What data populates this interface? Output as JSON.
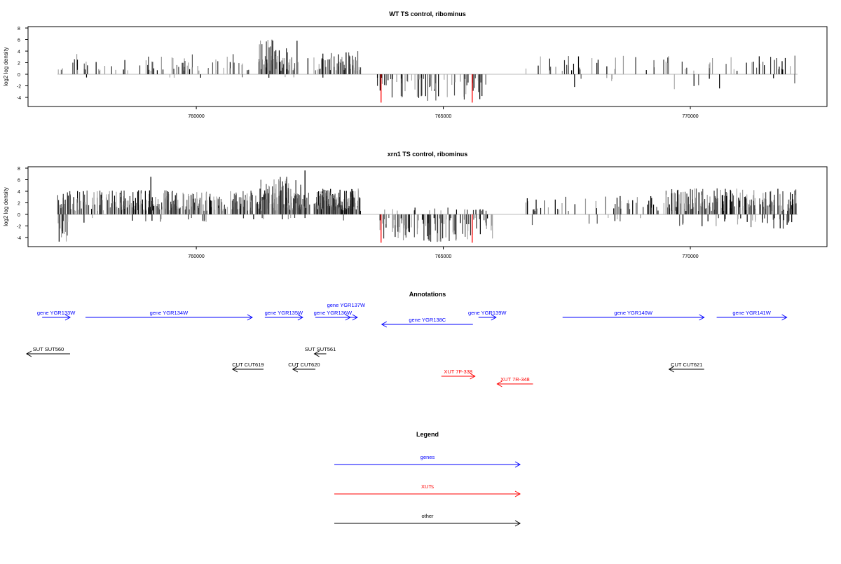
{
  "chart_data": [
    {
      "type": "bar",
      "title": "WT TS control, ribominus",
      "ylabel": "log2 log density",
      "xlabel": "",
      "xlim": [
        757190,
        772170
      ],
      "ylim": [
        -5.6,
        8.2
      ],
      "xticks": [
        760000,
        765000,
        770000
      ],
      "xtick_labels": [
        "760000",
        "765000",
        "770000"
      ],
      "yticks": [
        8,
        6,
        4,
        2,
        0,
        -2,
        -4
      ],
      "ytick_labels": [
        "8",
        "6",
        "4",
        "2",
        "0",
        "-2",
        "-4"
      ],
      "regions": [
        {
          "start": 757190,
          "end": 763330,
          "density": 18,
          "pos_max": 3.5,
          "neg_max": 0.3,
          "neg_prob": 0.03
        },
        {
          "start": 761270,
          "end": 762125,
          "density": 60,
          "pos_max": 6.2,
          "neg_max": 0.5,
          "neg_prob": 0.02
        },
        {
          "start": 762410,
          "end": 763330,
          "density": 45,
          "pos_max": 4.0,
          "neg_max": 0.5,
          "neg_prob": 0.02
        },
        {
          "start": 763620,
          "end": 765900,
          "density": 30,
          "pos_max": 0,
          "neg_max": 4.6,
          "neg_prob": 1
        },
        {
          "start": 766660,
          "end": 772170,
          "density": 14,
          "pos_max": 3.3,
          "neg_max": 2.6,
          "neg_prob": 0.12
        }
      ],
      "highlight_bars": [
        {
          "x": 763740,
          "y": -4.9,
          "color": "#ff0000"
        },
        {
          "x": 765585,
          "y": -4.9,
          "color": "#ff0000"
        }
      ],
      "seed": 11
    },
    {
      "type": "bar",
      "title": "xrn1 TS control, ribominus",
      "ylabel": "log2 log density",
      "xlabel": "",
      "xlim": [
        757190,
        772170
      ],
      "ylim": [
        -5.6,
        8.2
      ],
      "xticks": [
        760000,
        765000,
        770000
      ],
      "xtick_labels": [
        "760000",
        "765000",
        "770000"
      ],
      "yticks": [
        8,
        6,
        4,
        2,
        0,
        -2,
        -4
      ],
      "ytick_labels": [
        "8",
        "6",
        "4",
        "2",
        "0",
        "-2",
        "-4"
      ],
      "regions": [
        {
          "start": 757190,
          "end": 763330,
          "density": 80,
          "pos_max": 4.2,
          "neg_max": 1.5,
          "neg_prob": 0.05
        },
        {
          "start": 757190,
          "end": 757400,
          "density": 80,
          "pos_max": 4.4,
          "neg_max": 4.9,
          "neg_prob": 0.5
        },
        {
          "start": 761270,
          "end": 762125,
          "density": 120,
          "pos_max": 6.5,
          "neg_max": 1,
          "neg_prob": 0.03
        },
        {
          "start": 762410,
          "end": 763330,
          "density": 110,
          "pos_max": 4.5,
          "neg_max": 1,
          "neg_prob": 0.03
        },
        {
          "start": 763620,
          "end": 766000,
          "density": 55,
          "pos_max": 1.2,
          "neg_max": 4.8,
          "neg_prob": 0.85
        },
        {
          "start": 766660,
          "end": 769500,
          "density": 20,
          "pos_max": 3.3,
          "neg_max": 2,
          "neg_prob": 0.2
        },
        {
          "start": 769500,
          "end": 772170,
          "density": 90,
          "pos_max": 4.5,
          "neg_max": 2.5,
          "neg_prob": 0.15
        }
      ],
      "highlight_bars": [
        {
          "x": 763740,
          "y": -4.9,
          "color": "#ff0000"
        },
        {
          "x": 765585,
          "y": -4.9,
          "color": "#ff0000"
        },
        {
          "x": 762200,
          "y": 7.6,
          "color": "#000000"
        },
        {
          "x": 759080,
          "y": 6.5,
          "color": "#000000"
        }
      ],
      "seed": 29
    }
  ],
  "annotations": {
    "title": "Annotations",
    "features": [
      {
        "label": "gene YGR133W",
        "start": 756880,
        "end": 757445,
        "strand": "+",
        "kind": "gene",
        "track": 0
      },
      {
        "label": "gene YGR134W",
        "start": 757757,
        "end": 761132,
        "strand": "+",
        "kind": "gene",
        "track": 0
      },
      {
        "label": "gene YGR135W",
        "start": 761387,
        "end": 762153,
        "strand": "+",
        "kind": "gene",
        "track": 0
      },
      {
        "label": "gene YGR136W",
        "start": 762408,
        "end": 763117,
        "strand": "+",
        "kind": "gene",
        "track": 0
      },
      {
        "label": "gene YGR137W",
        "start": 762805,
        "end": 763259,
        "strand": "+",
        "kind": "gene",
        "track": 0
      },
      {
        "label": "gene YGR138C",
        "start": 763755,
        "end": 765599,
        "strand": "-",
        "kind": "gene",
        "track": 1
      },
      {
        "label": "gene YGR139W",
        "start": 765712,
        "end": 766067,
        "strand": "+",
        "kind": "gene",
        "track": 0
      },
      {
        "label": "gene YGR140W",
        "start": 767414,
        "end": 770278,
        "strand": "+",
        "kind": "gene",
        "track": 0
      },
      {
        "label": "gene YGR141W",
        "start": 770533,
        "end": 771951,
        "strand": "+",
        "kind": "gene",
        "track": 0
      },
      {
        "label": "SUT SUT560",
        "start": 756566,
        "end": 757445,
        "strand": "-",
        "kind": "other",
        "track": 2
      },
      {
        "label": "SUT SUT561",
        "start": 762390,
        "end": 762630,
        "strand": "-",
        "kind": "other",
        "track": 2
      },
      {
        "label": "CUT CUT619",
        "start": 760735,
        "end": 761360,
        "strand": "-",
        "kind": "other",
        "track": 3
      },
      {
        "label": "CUT CUT620",
        "start": 761955,
        "end": 762410,
        "strand": "-",
        "kind": "other",
        "track": 3
      },
      {
        "label": "CUT CUT621",
        "start": 769570,
        "end": 770280,
        "strand": "-",
        "kind": "other",
        "track": 3
      },
      {
        "label": "XUT 7F-338",
        "start": 764960,
        "end": 765640,
        "strand": "+",
        "kind": "xut",
        "track": 4
      },
      {
        "label": "XUT 7R-348",
        "start": 766090,
        "end": 766815,
        "strand": "-",
        "kind": "xut",
        "track": 5
      }
    ]
  },
  "legend": {
    "title": "Legend",
    "items": [
      {
        "label": "genes",
        "color": "#0000ff"
      },
      {
        "label": "XUTs",
        "color": "#ff0000"
      },
      {
        "label": "other",
        "color": "#000000"
      }
    ]
  },
  "colors": {
    "gene": "#0000ff",
    "xut": "#ff0000",
    "other": "#000000"
  }
}
